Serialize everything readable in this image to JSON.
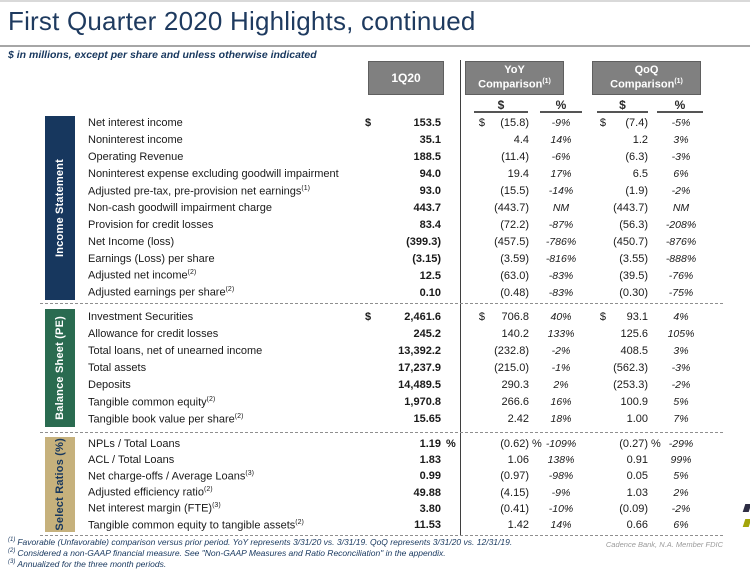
{
  "title": "First Quarter 2020 Highlights, continued",
  "subtitle": "$ in millions, except per share and unless otherwise indicated",
  "header": {
    "q1": "1Q20",
    "yoy_title": "YoY",
    "yoy_subtitle": "Comparison",
    "yoy_footnote": "(1)",
    "qoq_title": "QoQ",
    "qoq_subtitle": "Comparison",
    "qoq_footnote": "(1)",
    "dollar_col": "$",
    "percent_col": "%"
  },
  "sections": [
    {
      "label": "Income Statement",
      "color": "#17375e",
      "rows": [
        {
          "label": "Net interest income",
          "s1": "$",
          "v1": "153.5",
          "sy": "$",
          "vy": "(15.8)",
          "cy": "-9%",
          "sq": "$",
          "vq": "(7.4)",
          "cq": "-5%"
        },
        {
          "label": "Noninterest income",
          "v1": "35.1",
          "vy": "4.4",
          "cy": "14%",
          "vq": "1.2",
          "cq": "3%"
        },
        {
          "label": "Operating Revenue",
          "v1": "188.5",
          "vy": "(11.4)",
          "cy": "-6%",
          "vq": "(6.3)",
          "cq": "-3%"
        },
        {
          "label": "Noninterest expense excluding goodwill impairment",
          "v1": "94.0",
          "vy": "19.4",
          "cy": "17%",
          "vq": "6.5",
          "cq": "6%"
        },
        {
          "label": "Adjusted pre-tax, pre-provision net earnings",
          "sup": "(1)",
          "v1": "93.0",
          "vy": "(15.5)",
          "cy": "-14%",
          "vq": "(1.9)",
          "cq": "-2%"
        },
        {
          "label": "Non-cash goodwill impairment charge",
          "v1": "443.7",
          "vy": "(443.7)",
          "cy": "NM",
          "vq": "(443.7)",
          "cq": "NM"
        },
        {
          "label": "Provision for credit losses",
          "v1": "83.4",
          "vy": "(72.2)",
          "cy": "-87%",
          "vq": "(56.3)",
          "cq": "-208%"
        },
        {
          "label": "Net Income (loss)",
          "v1": "(399.3)",
          "vy": "(457.5)",
          "cy": "-786%",
          "vq": "(450.7)",
          "cq": "-876%"
        },
        {
          "label": "Earnings (Loss) per share",
          "v1": "(3.15)",
          "vy": "(3.59)",
          "cy": "-816%",
          "vq": "(3.55)",
          "cq": "-888%"
        },
        {
          "label": "Adjusted net income",
          "sup": "(2)",
          "v1": "12.5",
          "vy": "(63.0)",
          "cy": "-83%",
          "vq": "(39.5)",
          "cq": "-76%"
        },
        {
          "label": "Adjusted earnings per share",
          "sup": "(2)",
          "v1": "0.10",
          "vy": "(0.48)",
          "cy": "-83%",
          "vq": "(0.30)",
          "cq": "-75%"
        }
      ]
    },
    {
      "label": "Balance Sheet (PE)",
      "color": "#2a6b50",
      "rows": [
        {
          "label": "Investment Securities",
          "s1": "$",
          "v1": "2,461.6",
          "sy": "$",
          "vy": "706.8",
          "cy": "40%",
          "sq": "$",
          "vq": "93.1",
          "cq": "4%"
        },
        {
          "label": "Allowance for credit losses",
          "v1": "245.2",
          "vy": "140.2",
          "cy": "133%",
          "vq": "125.6",
          "cq": "105%"
        },
        {
          "label": "Total loans, net of unearned income",
          "v1": "13,392.2",
          "vy": "(232.8)",
          "cy": "-2%",
          "vq": "408.5",
          "cq": "3%"
        },
        {
          "label": "Total assets",
          "v1": "17,237.9",
          "vy": "(215.0)",
          "cy": "-1%",
          "vq": "(562.3)",
          "cq": "-3%"
        },
        {
          "label": "Deposits",
          "v1": "14,489.5",
          "vy": "290.3",
          "cy": "2%",
          "vq": "(253.3)",
          "cq": "-2%"
        },
        {
          "label": "Tangible common equity",
          "sup": "(2)",
          "v1": "1,970.8",
          "vy": "266.6",
          "cy": "16%",
          "vq": "100.9",
          "cq": "5%"
        },
        {
          "label": "Tangible book value per share",
          "sup": "(2)",
          "v1": "15.65",
          "vy": "2.42",
          "cy": "18%",
          "vq": "1.00",
          "cq": "7%"
        }
      ]
    },
    {
      "label": "Select Ratios (%)",
      "color": "#c6b17c",
      "rows": [
        {
          "label": "NPLs / Total Loans",
          "v1": "1.19",
          "p1": "%",
          "vy": "(0.62)",
          "py": "%",
          "cy": "-109%",
          "vq": "(0.27)",
          "pq": "%",
          "cq": "-29%"
        },
        {
          "label": "ACL / Total Loans",
          "v1": "1.83",
          "vy": "1.06",
          "cy": "138%",
          "vq": "0.91",
          "cq": "99%"
        },
        {
          "label": "Net charge-offs / Average Loans",
          "sup": "(3)",
          "v1": "0.99",
          "vy": "(0.97)",
          "cy": "-98%",
          "vq": "0.05",
          "cq": "5%"
        },
        {
          "label": "Adjusted efficiency ratio",
          "sup": "(2)",
          "v1": "49.88",
          "vy": "(4.15)",
          "cy": "-9%",
          "vq": "1.03",
          "cq": "2%"
        },
        {
          "label": "Net interest margin (FTE)",
          "sup": "(3)",
          "v1": "3.80",
          "vy": "(0.41)",
          "cy": "-10%",
          "vq": "(0.09)",
          "cq": "-2%"
        },
        {
          "label": "Tangible common equity to tangible assets",
          "sup": "(2)",
          "v1": "11.53",
          "vy": "1.42",
          "cy": "14%",
          "vq": "0.66",
          "cq": "6%"
        }
      ]
    }
  ],
  "footnotes": [
    {
      "sup": "(1)",
      "text": "Favorable (Unfavorable) comparison versus prior period.  YoY represents 3/31/20 vs. 3/31/19.  QoQ represents 3/31/20 vs. 12/31/19."
    },
    {
      "sup": "(2)",
      "text": "Considered a non-GAAP financial measure. See \"Non-GAAP Measures and Ratio Reconciliation\" in the appendix."
    },
    {
      "sup": "(3)",
      "text": "Annualized for the three month periods."
    }
  ],
  "footer_right": "Cadence Bank, N.A. Member FDIC",
  "colors": {
    "title_navy": "#1e3a5f",
    "sidebar_navy": "#17375e",
    "sidebar_green": "#2a6b50",
    "sidebar_tan": "#c6b17c",
    "header_gray": "#808080"
  }
}
